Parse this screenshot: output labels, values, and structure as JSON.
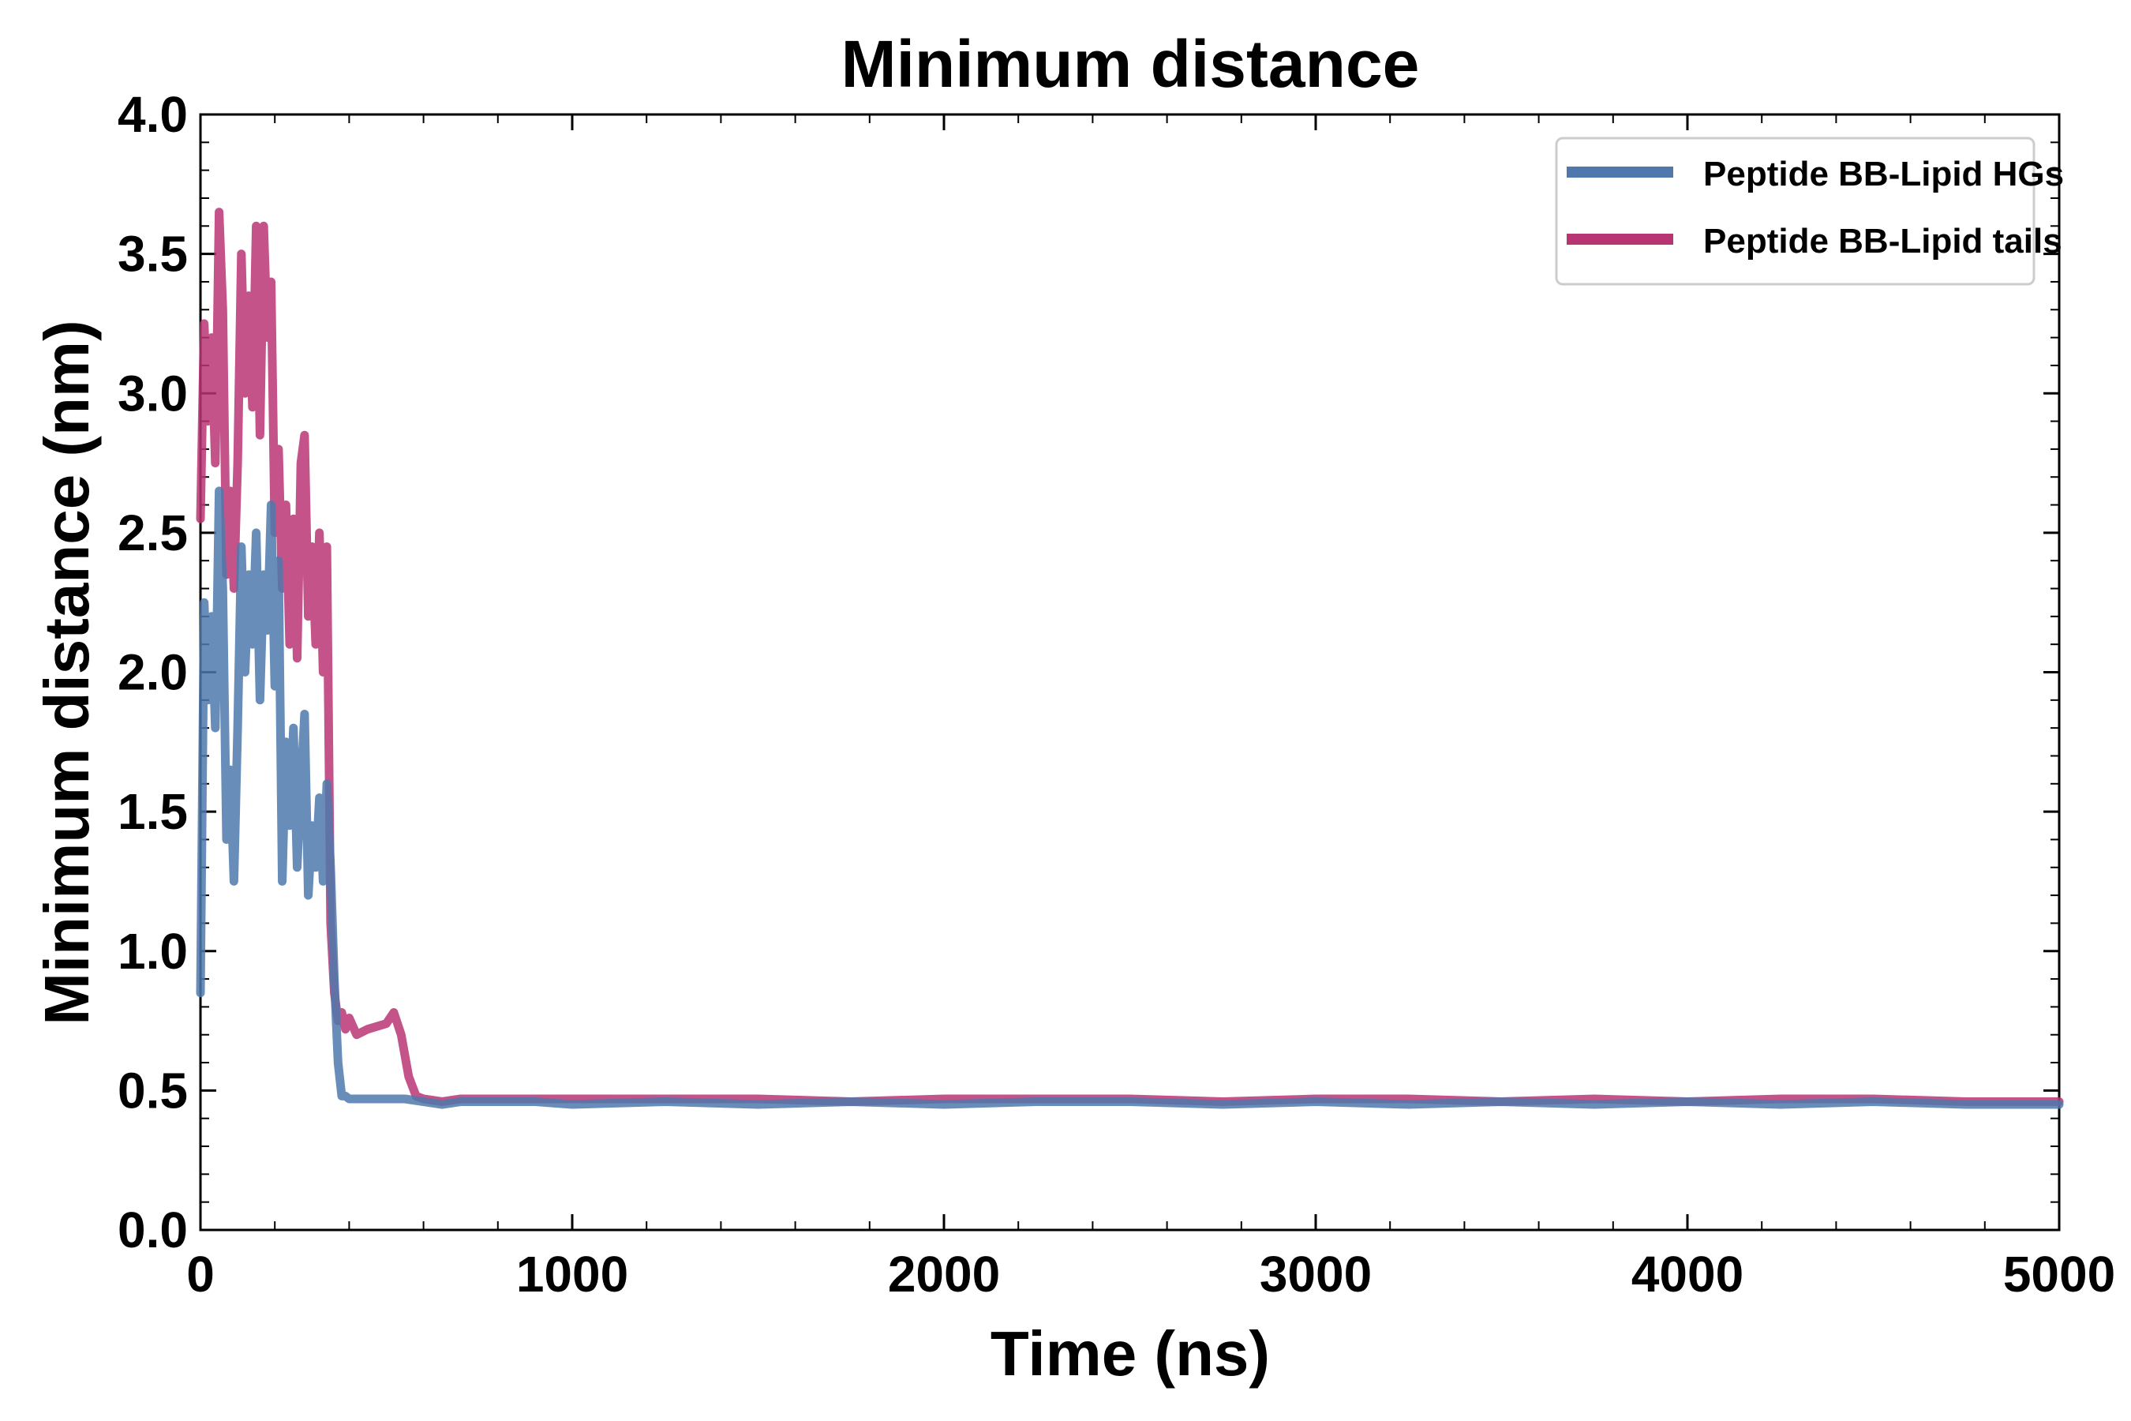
{
  "chart_data": {
    "type": "line",
    "title": "Minimum distance",
    "xlabel": "Time (ns)",
    "ylabel": "Minimum distance (nm)",
    "xlim": [
      0,
      5000
    ],
    "ylim": [
      0,
      4.0
    ],
    "x_ticks": [
      "0",
      "1000",
      "2000",
      "3000",
      "4000",
      "5000"
    ],
    "y_ticks": [
      "0.0",
      "0.5",
      "1.0",
      "1.5",
      "2.0",
      "2.5",
      "3.0",
      "3.5",
      "4.0"
    ],
    "grid": false,
    "legend_position": "top-right",
    "series": [
      {
        "name": "Peptide BB-Lipid HGs",
        "color": "#4f79ad",
        "x": [
          0,
          10,
          20,
          30,
          40,
          50,
          60,
          70,
          80,
          90,
          100,
          110,
          120,
          130,
          140,
          150,
          160,
          170,
          180,
          190,
          200,
          210,
          220,
          230,
          240,
          250,
          260,
          270,
          280,
          290,
          300,
          310,
          320,
          330,
          340,
          350,
          360,
          370,
          380,
          390,
          400,
          420,
          450,
          500,
          550,
          600,
          650,
          700,
          800,
          900,
          1000,
          1250,
          1500,
          1750,
          2000,
          2250,
          2500,
          2750,
          3000,
          3250,
          3500,
          3750,
          4000,
          4250,
          4500,
          4750,
          5000
        ],
        "y": [
          0.85,
          2.25,
          1.9,
          2.2,
          1.8,
          2.65,
          2.3,
          1.4,
          1.65,
          1.25,
          1.8,
          2.45,
          2.0,
          2.35,
          2.1,
          2.5,
          1.9,
          2.35,
          2.15,
          2.6,
          1.95,
          2.4,
          1.25,
          1.75,
          1.45,
          1.8,
          1.3,
          1.6,
          1.85,
          1.2,
          1.45,
          1.3,
          1.55,
          1.25,
          1.6,
          1.3,
          0.9,
          0.6,
          0.48,
          0.48,
          0.47,
          0.47,
          0.47,
          0.47,
          0.47,
          0.46,
          0.45,
          0.46,
          0.46,
          0.46,
          0.45,
          0.46,
          0.45,
          0.46,
          0.45,
          0.46,
          0.46,
          0.45,
          0.46,
          0.45,
          0.46,
          0.45,
          0.46,
          0.45,
          0.46,
          0.45,
          0.45
        ]
      },
      {
        "name": "Peptide BB-Lipid tails",
        "color": "#b83574",
        "x": [
          0,
          10,
          20,
          30,
          40,
          50,
          60,
          70,
          80,
          90,
          100,
          110,
          120,
          130,
          140,
          150,
          160,
          170,
          180,
          190,
          200,
          210,
          220,
          230,
          240,
          250,
          260,
          270,
          280,
          290,
          300,
          310,
          320,
          330,
          340,
          350,
          360,
          370,
          380,
          390,
          400,
          420,
          450,
          500,
          520,
          540,
          560,
          580,
          600,
          650,
          700,
          800,
          900,
          1000,
          1250,
          1500,
          1750,
          2000,
          2250,
          2500,
          2750,
          3000,
          3250,
          3500,
          3750,
          4000,
          4250,
          4500,
          4750,
          5000
        ],
        "y": [
          2.55,
          3.25,
          2.9,
          3.2,
          2.75,
          3.65,
          3.3,
          2.35,
          2.65,
          2.3,
          2.75,
          3.5,
          3.0,
          3.35,
          2.95,
          3.6,
          2.85,
          3.6,
          3.2,
          3.4,
          2.5,
          2.8,
          2.3,
          2.6,
          2.1,
          2.55,
          2.05,
          2.75,
          2.85,
          2.2,
          2.45,
          2.1,
          2.5,
          2.0,
          2.45,
          1.1,
          0.85,
          0.75,
          0.78,
          0.72,
          0.76,
          0.7,
          0.72,
          0.74,
          0.78,
          0.7,
          0.55,
          0.48,
          0.47,
          0.46,
          0.47,
          0.47,
          0.47,
          0.47,
          0.47,
          0.47,
          0.46,
          0.47,
          0.47,
          0.47,
          0.46,
          0.47,
          0.47,
          0.46,
          0.47,
          0.46,
          0.47,
          0.47,
          0.46,
          0.46
        ]
      }
    ]
  }
}
